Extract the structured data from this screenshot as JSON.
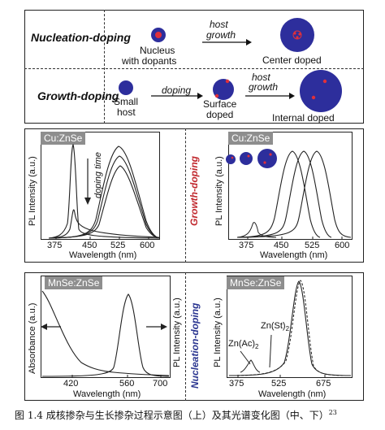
{
  "top": {
    "row1": {
      "title": "Nucleation-doping",
      "nucleus_label_1": "Nucleus",
      "nucleus_label_2": "with dopants",
      "arrow_label_1": "host",
      "arrow_label_2": "growth",
      "result_label": "Center doped"
    },
    "row2": {
      "title": "Growth-doping",
      "host_label_1": "Small",
      "host_label_2": "host",
      "arrow1_label": "doping",
      "surface_label_1": "Surface",
      "surface_label_2": "doped",
      "arrow2_label_1": "host",
      "arrow2_label_2": "growth",
      "result_label": "Internal doped"
    }
  },
  "middle": {
    "left": {
      "tag": "Cu:ZnSe",
      "ylabel": "PL Intensity (a.u.)",
      "xlabel": "Wavelength (nm)",
      "xticks": [
        "375",
        "450",
        "525",
        "600"
      ],
      "annotation": "doping time"
    },
    "center_label": "Growth-doping",
    "right": {
      "tag": "Cu:ZnSe",
      "ylabel": "PL Intensity (a.u.)",
      "xlabel": "Wavelength (nm)",
      "xticks": [
        "375",
        "450",
        "525",
        "600"
      ]
    }
  },
  "bottom": {
    "left": {
      "tag": "MnSe:ZnSe",
      "ylabel": "Absorbance (a.u.)",
      "ylabel_right": "PL Intensity (a.u.)",
      "xlabel": "Wavelength (nm)",
      "xticks": [
        "420",
        "560",
        "700"
      ]
    },
    "center_label": "Nucleation-doping",
    "right": {
      "tag": "MnSe:ZnSe",
      "ylabel": "PL Intensity (a.u.)",
      "xlabel": "Wavelength (nm)",
      "xticks": [
        "375",
        "525",
        "675"
      ],
      "annotation1": "Zn(St)",
      "annotation1_sub": "2",
      "annotation2": "Zn(Ac)",
      "annotation2_sub": "2"
    }
  },
  "caption": "图 1.4  成核掺杂与生长掺杂过程示意图（上）及其光谱变化图（中、下）",
  "caption_ref": "23",
  "colors": {
    "host": "#2d2e9c",
    "dopant": "#e0303a",
    "text_red": "#c0272d",
    "text_blue": "#2a3590",
    "tag_bg": "#8e8e8e"
  }
}
